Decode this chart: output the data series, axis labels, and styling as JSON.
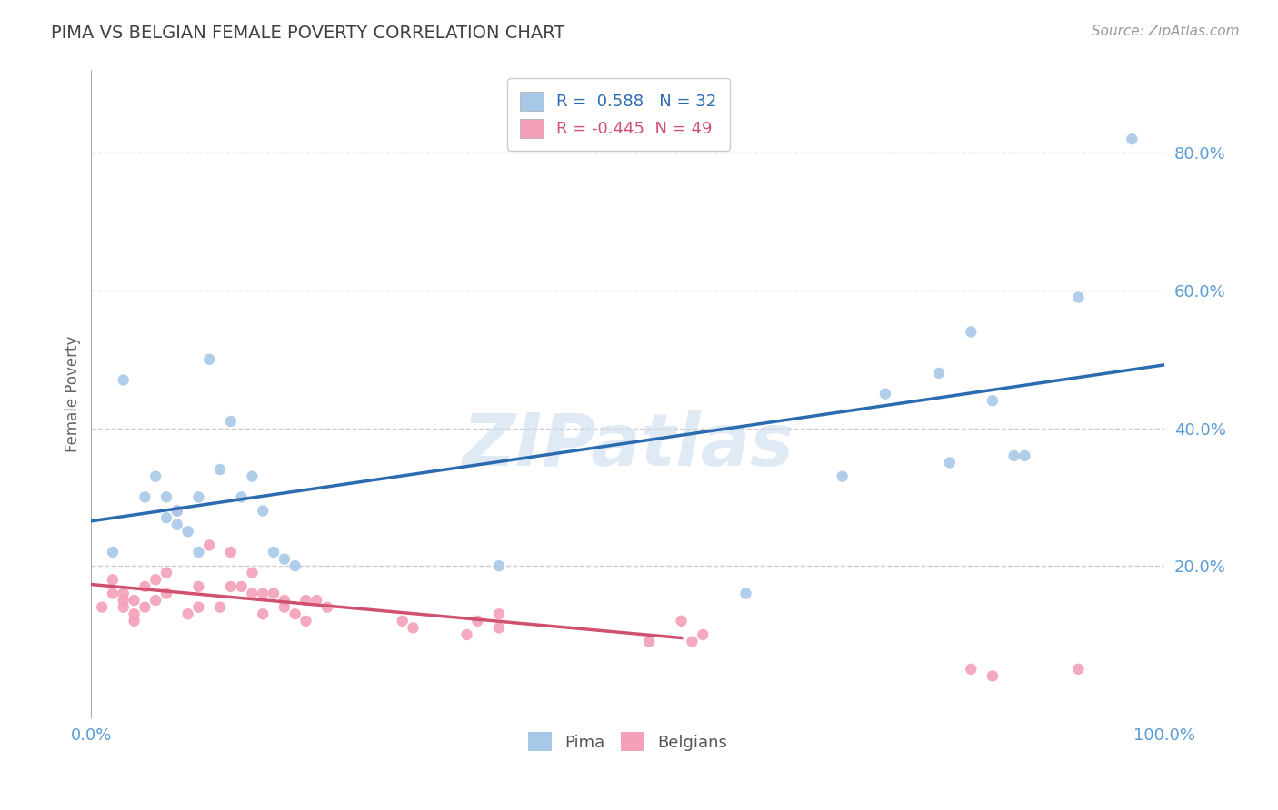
{
  "title": "PIMA VS BELGIAN FEMALE POVERTY CORRELATION CHART",
  "source": "Source: ZipAtlas.com",
  "ylabel": "Female Poverty",
  "xlim": [
    0.0,
    1.0
  ],
  "ylim": [
    -0.02,
    0.92
  ],
  "y_ticks": [
    0.2,
    0.4,
    0.6,
    0.8
  ],
  "y_tick_labels": [
    "20.0%",
    "40.0%",
    "60.0%",
    "80.0%"
  ],
  "pima_color": "#a8c8e8",
  "pima_line_color": "#2b6cb0",
  "belgian_color": "#f4a0b8",
  "belgian_line_color": "#d05070",
  "R_pima": 0.588,
  "N_pima": 32,
  "R_belgian": -0.445,
  "N_belgian": 49,
  "pima_x": [
    0.02,
    0.03,
    0.05,
    0.06,
    0.07,
    0.07,
    0.08,
    0.08,
    0.09,
    0.1,
    0.1,
    0.11,
    0.12,
    0.13,
    0.14,
    0.15,
    0.16,
    0.17,
    0.18,
    0.19,
    0.38,
    0.61,
    0.7,
    0.74,
    0.79,
    0.8,
    0.82,
    0.84,
    0.86,
    0.87,
    0.92,
    0.97
  ],
  "pima_y": [
    0.22,
    0.47,
    0.3,
    0.33,
    0.27,
    0.3,
    0.26,
    0.28,
    0.25,
    0.22,
    0.3,
    0.5,
    0.34,
    0.41,
    0.3,
    0.33,
    0.28,
    0.22,
    0.21,
    0.2,
    0.2,
    0.16,
    0.33,
    0.45,
    0.48,
    0.35,
    0.54,
    0.44,
    0.36,
    0.36,
    0.59,
    0.82
  ],
  "belgian_x": [
    0.01,
    0.02,
    0.02,
    0.03,
    0.03,
    0.03,
    0.04,
    0.04,
    0.04,
    0.05,
    0.05,
    0.06,
    0.06,
    0.07,
    0.07,
    0.08,
    0.09,
    0.1,
    0.1,
    0.11,
    0.12,
    0.13,
    0.13,
    0.14,
    0.15,
    0.15,
    0.16,
    0.16,
    0.17,
    0.18,
    0.18,
    0.19,
    0.2,
    0.2,
    0.21,
    0.22,
    0.29,
    0.3,
    0.35,
    0.36,
    0.38,
    0.38,
    0.52,
    0.55,
    0.56,
    0.57,
    0.82,
    0.84,
    0.92
  ],
  "belgian_y": [
    0.14,
    0.16,
    0.18,
    0.14,
    0.15,
    0.16,
    0.12,
    0.13,
    0.15,
    0.17,
    0.14,
    0.15,
    0.18,
    0.16,
    0.19,
    0.28,
    0.13,
    0.14,
    0.17,
    0.23,
    0.14,
    0.22,
    0.17,
    0.17,
    0.16,
    0.19,
    0.13,
    0.16,
    0.16,
    0.15,
    0.14,
    0.13,
    0.15,
    0.12,
    0.15,
    0.14,
    0.12,
    0.11,
    0.1,
    0.12,
    0.11,
    0.13,
    0.09,
    0.12,
    0.09,
    0.1,
    0.05,
    0.04,
    0.05
  ],
  "watermark": "ZIPatlas",
  "background_color": "#ffffff",
  "grid_color": "#cccccc",
  "title_color": "#404040",
  "tick_color": "#5b9bd5",
  "marker_size": 80,
  "pima_line_x_start": 0.0,
  "pima_line_x_end": 1.0,
  "belgian_line_x_end": 0.55
}
